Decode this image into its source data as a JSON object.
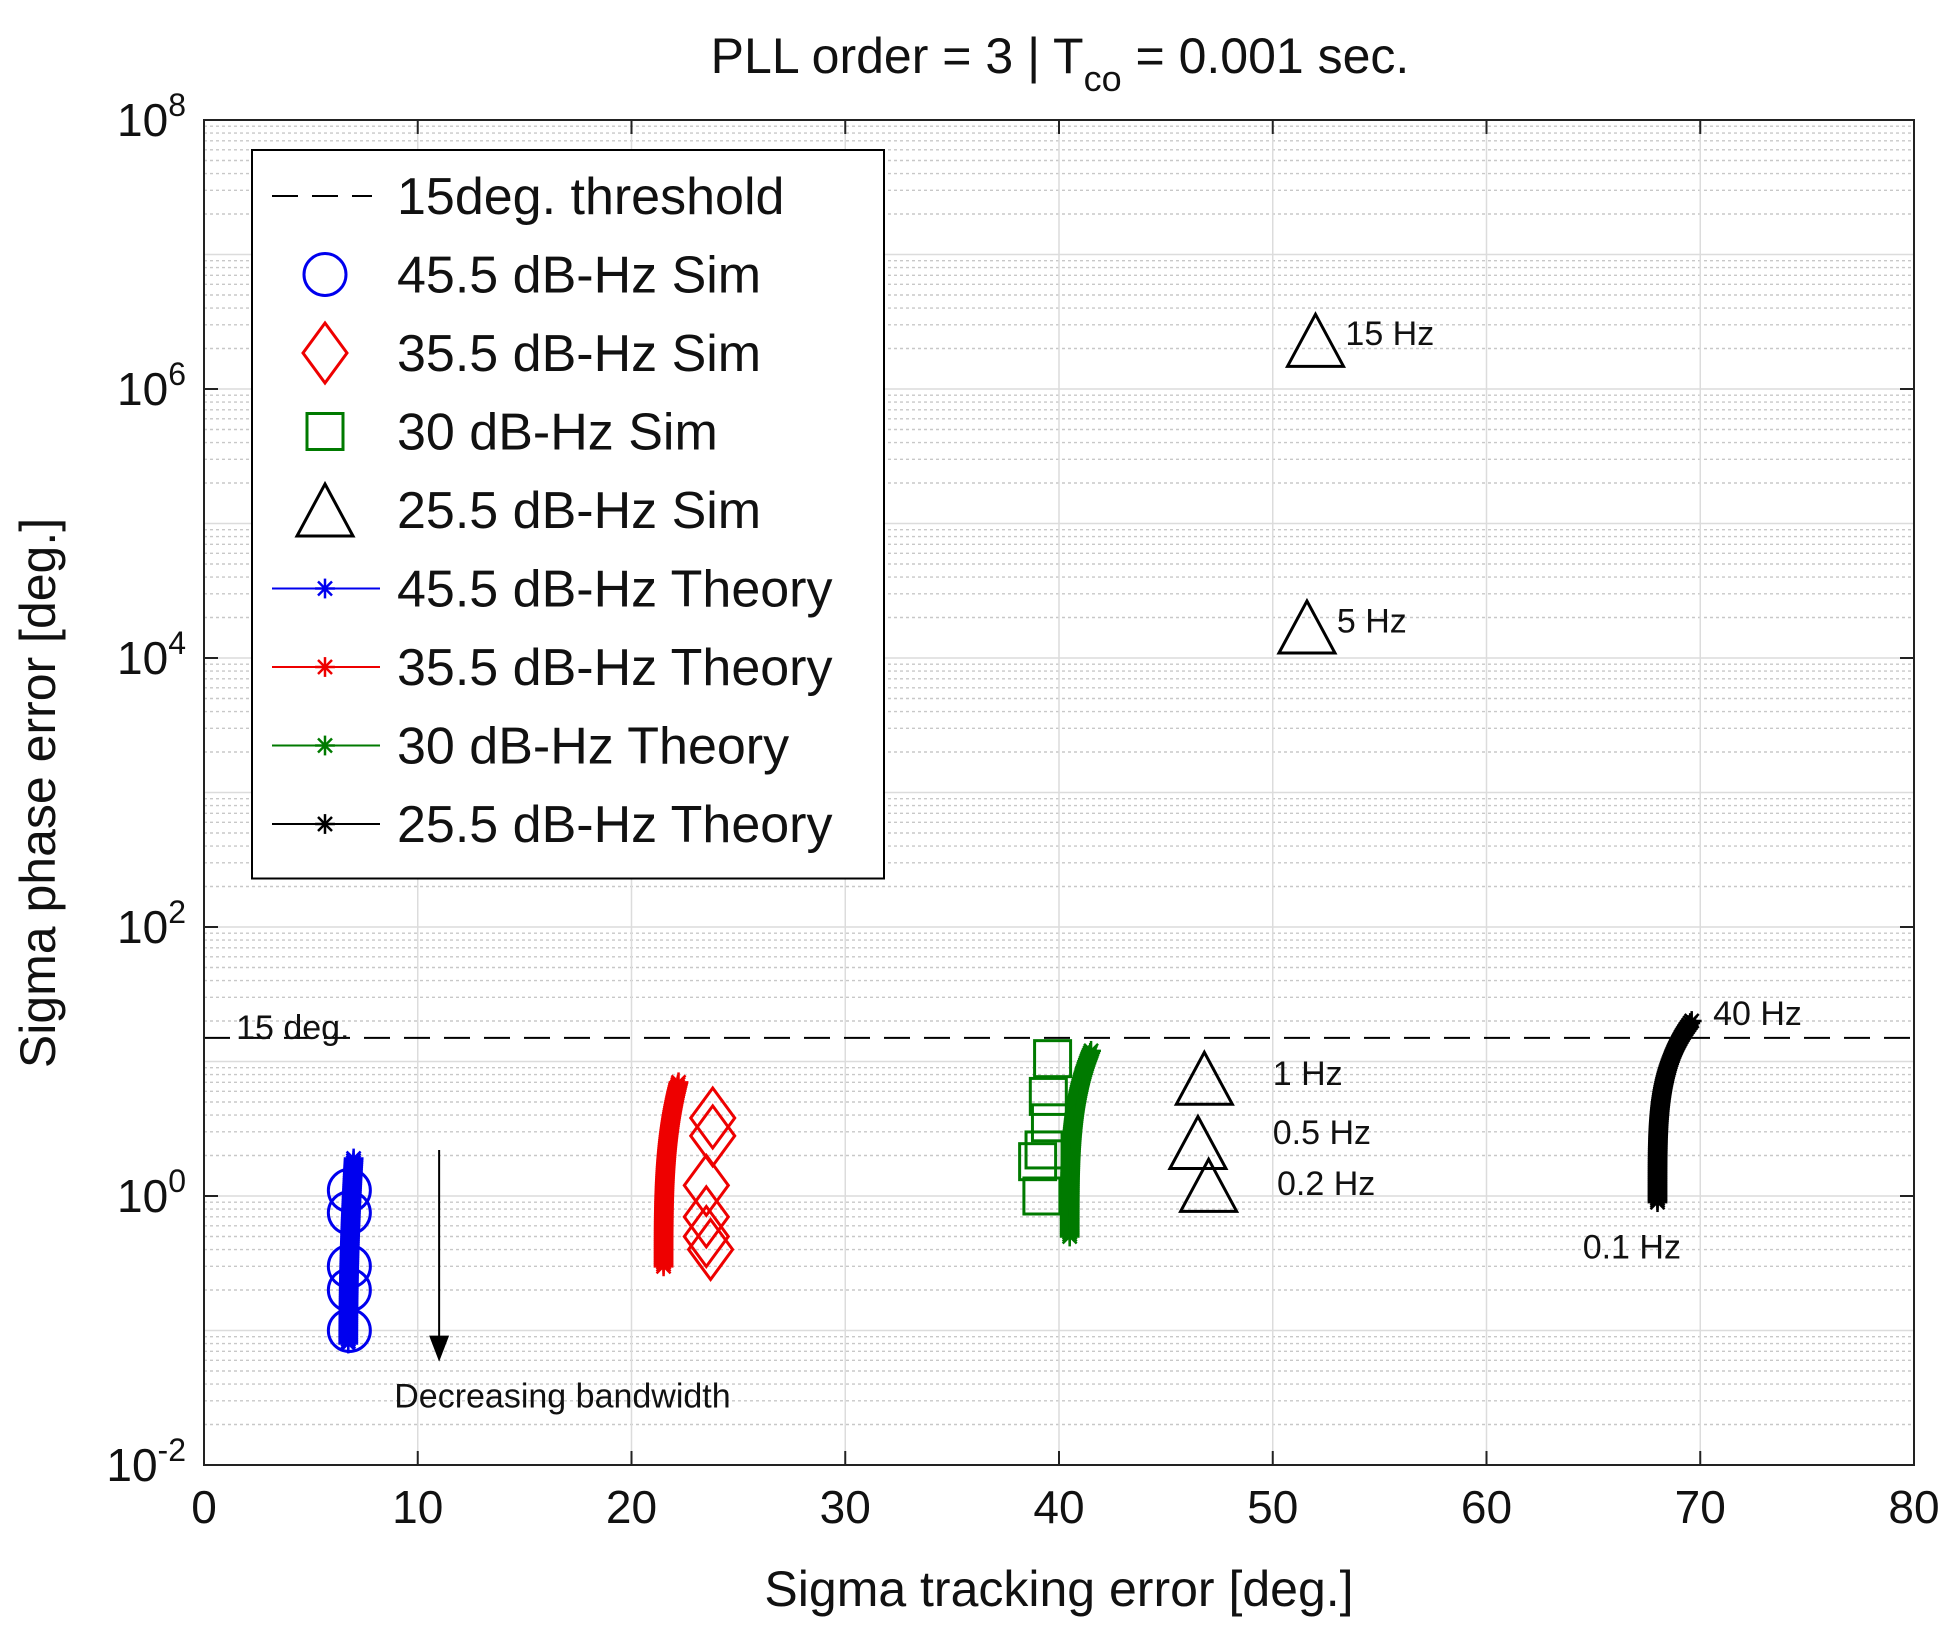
{
  "chart_data": {
    "type": "scatter",
    "title": "PLL order = 3  |  T",
    "title_subscript": "co",
    "title_suffix": " = 0.001 sec.",
    "xlabel": "Sigma tracking error [deg.]",
    "ylabel": "Sigma phase error [deg.]",
    "xlim": [
      0,
      80
    ],
    "ylim_log10": [
      -2,
      8
    ],
    "yscale": "log",
    "grid": true,
    "x_ticks": [
      "0",
      "10",
      "20",
      "30",
      "40",
      "50",
      "60",
      "70",
      "80"
    ],
    "y_ticks": [
      {
        "base": "10",
        "exp": "-2"
      },
      {
        "base": "10",
        "exp": "0"
      },
      {
        "base": "10",
        "exp": "2"
      },
      {
        "base": "10",
        "exp": "4"
      },
      {
        "base": "10",
        "exp": "6"
      },
      {
        "base": "10",
        "exp": "8"
      }
    ],
    "threshold": {
      "value": 15,
      "label": "15 deg."
    },
    "colors": {
      "blue": "#0000ee",
      "red": "#ee0000",
      "green": "#007a00",
      "black": "#000000"
    },
    "sim_series": [
      {
        "name": "45.5 dB-Hz Sim",
        "marker": "circle",
        "color": "#0000ee",
        "points": [
          [
            6.8,
            1.1
          ],
          [
            6.8,
            0.75
          ],
          [
            6.8,
            0.3
          ],
          [
            6.8,
            0.2
          ],
          [
            6.8,
            0.1
          ]
        ]
      },
      {
        "name": "35.5 dB-Hz Sim",
        "marker": "diamond",
        "color": "#ee0000",
        "points": [
          [
            23.8,
            3.8
          ],
          [
            23.8,
            2.8
          ],
          [
            23.5,
            1.2
          ],
          [
            23.5,
            0.7
          ],
          [
            23.7,
            0.4
          ],
          [
            23.5,
            0.5
          ]
        ]
      },
      {
        "name": "30 dB-Hz Sim",
        "marker": "square",
        "color": "#007a00",
        "points": [
          [
            39.7,
            10.5
          ],
          [
            39.5,
            5.5
          ],
          [
            39.6,
            3.5
          ],
          [
            39.3,
            2.2
          ],
          [
            39.0,
            1.8
          ],
          [
            39.2,
            1.0
          ]
        ]
      },
      {
        "name": "25.5 dB-Hz Sim",
        "marker": "triangle",
        "color": "#000000",
        "points": [
          [
            52.0,
            2300000
          ],
          [
            51.6,
            17000
          ],
          [
            46.8,
            7.5
          ],
          [
            46.5,
            2.5
          ],
          [
            47.0,
            1.2
          ]
        ]
      }
    ],
    "theory_series": [
      {
        "name": "45.5 dB-Hz Theory",
        "color": "#0000ee",
        "x": [
          6.75,
          7.0
        ],
        "y": [
          0.08,
          1.9
        ],
        "lean": 0
      },
      {
        "name": "35.5 dB-Hz Theory",
        "color": "#ee0000",
        "x": [
          21.5,
          22.2
        ],
        "y": [
          0.3,
          7.0
        ],
        "lean": 0.6
      },
      {
        "name": "30 dB-Hz Theory",
        "color": "#007a00",
        "x": [
          40.5,
          41.5
        ],
        "y": [
          0.5,
          12
        ],
        "lean": 0.8
      },
      {
        "name": "25.5 dB-Hz Theory",
        "color": "#000000",
        "x": [
          68.0,
          69.6
        ],
        "y": [
          0.9,
          20
        ],
        "lean": 1.0
      }
    ],
    "annotations": [
      {
        "text": "15 Hz",
        "x": 53.4,
        "y": 2600000
      },
      {
        "text": "5 Hz",
        "x": 53.0,
        "y": 19000
      },
      {
        "text": "1 Hz",
        "x": 50.0,
        "y": 8.2
      },
      {
        "text": "0.5 Hz",
        "x": 50.0,
        "y": 3.0
      },
      {
        "text": "0.2 Hz",
        "x": 50.2,
        "y": 1.25
      },
      {
        "text": "40 Hz",
        "x": 70.6,
        "y": 23
      },
      {
        "text": "0.1 Hz",
        "x": 64.5,
        "y": 0.42
      },
      {
        "text": "15 deg.",
        "x": 1.5,
        "y": 18
      },
      {
        "text": "Decreasing bandwidth",
        "x": 8.9,
        "y": 0.033
      }
    ],
    "bandwidth_arrow": {
      "x": 11.0,
      "y_from": 2.2,
      "y_to": 0.065
    },
    "legend": {
      "position": "top-left",
      "entries": [
        {
          "label": "15deg. threshold",
          "kind": "dash",
          "color": "#000000"
        },
        {
          "label": "45.5 dB-Hz Sim",
          "kind": "circle",
          "color": "#0000ee"
        },
        {
          "label": "35.5 dB-Hz Sim",
          "kind": "diamond",
          "color": "#ee0000"
        },
        {
          "label": "30 dB-Hz Sim",
          "kind": "square",
          "color": "#007a00"
        },
        {
          "label": "25.5 dB-Hz Sim",
          "kind": "triangle",
          "color": "#000000"
        },
        {
          "label": "45.5 dB-Hz Theory",
          "kind": "line-star",
          "color": "#0000ee"
        },
        {
          "label": "35.5 dB-Hz Theory",
          "kind": "line-star",
          "color": "#ee0000"
        },
        {
          "label": "30 dB-Hz Theory",
          "kind": "line-star",
          "color": "#007a00"
        },
        {
          "label": "25.5 dB-Hz Theory",
          "kind": "line-star",
          "color": "#000000"
        }
      ]
    }
  }
}
